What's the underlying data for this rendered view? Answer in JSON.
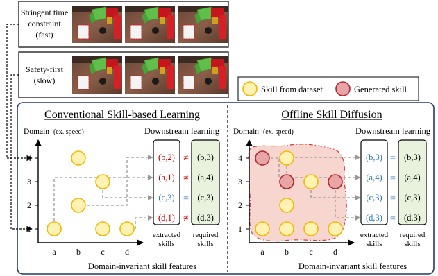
{
  "conditions": [
    {
      "label_lines": [
        "Stringent time",
        "constraint",
        "(fast)"
      ]
    },
    {
      "label_lines": [
        "Safety-first",
        "(slow)"
      ]
    }
  ],
  "legend": {
    "dataset_label": "Skill from dataset",
    "generated_label": "Generated skill"
  },
  "panels": {
    "left": {
      "title": "Conventional Skill-based Learning",
      "ylabel": "Domain",
      "ylabel_note": "(ex. speed)",
      "xlabel": "Domain-invariant skill features",
      "downstream_title": "Downstream learning",
      "extracted_label_lines": [
        "extracted",
        "skills"
      ],
      "required_label_lines": [
        "required",
        "skills"
      ],
      "rows": [
        {
          "extracted": "(b,2)",
          "relation": "≠",
          "required": "(b,3)"
        },
        {
          "extracted": "(a,1)",
          "relation": "≠",
          "required": "(a,4)"
        },
        {
          "extracted": "(c,3)",
          "relation": "=",
          "required": "(c,3)"
        },
        {
          "extracted": "(d,1)",
          "relation": "≠",
          "required": "(d,3)"
        }
      ]
    },
    "right": {
      "title": "Offline Skill Diffusion",
      "ylabel": "Domain",
      "ylabel_note": "(ex. speed)",
      "xlabel": "Domain-invariant skill features",
      "downstream_title": "Downstream learning",
      "extracted_label_lines": [
        "extracted",
        "skills"
      ],
      "required_label_lines": [
        "required",
        "skills"
      ],
      "rows": [
        {
          "extracted": "(b,3)",
          "relation": "=",
          "required": "(b,3)"
        },
        {
          "extracted": "(a,4)",
          "relation": "=",
          "required": "(a,4)"
        },
        {
          "extracted": "(c,3)",
          "relation": "=",
          "required": "(c,3)"
        },
        {
          "extracted": "(d,3)",
          "relation": "=",
          "required": "(d,3)"
        }
      ]
    }
  },
  "axis": {
    "x_ticks": [
      "a",
      "b",
      "c",
      "d"
    ],
    "y_ticks": [
      "1",
      "2",
      "3",
      "4"
    ]
  },
  "colors": {
    "dataset_fill": "#fff2b3",
    "dataset_stroke": "#f2b700",
    "generated_fill": "#e8a5a5",
    "generated_stroke": "#b0262b",
    "region_fill": "#f7d6d0",
    "region_stroke": "#d04040",
    "frame_border": "#1f3a6e",
    "mismatch": "#c00000",
    "match": "#2e75b6",
    "required_fill": "#e8f2dc"
  }
}
